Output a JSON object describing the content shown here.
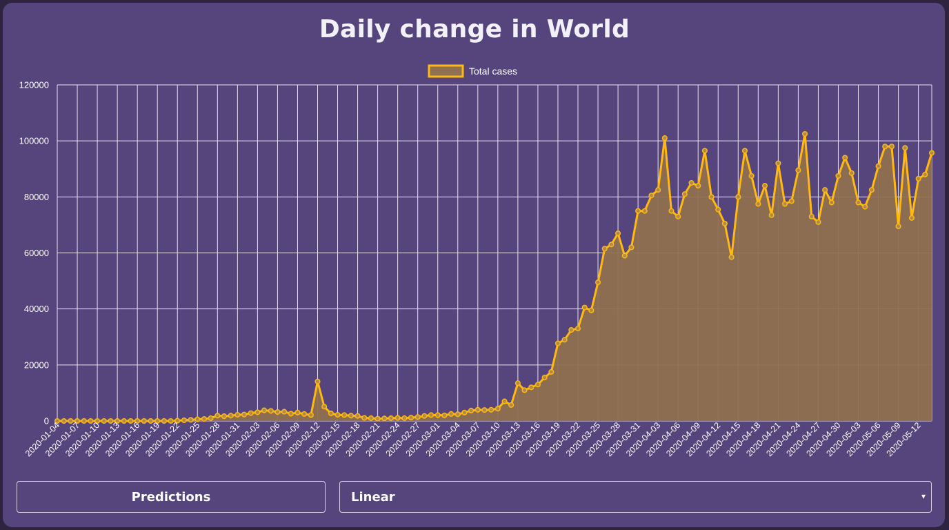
{
  "chart_data": {
    "type": "area",
    "title": "Daily change in World",
    "legend": {
      "position": "top",
      "entries": [
        "Total cases"
      ]
    },
    "series": [
      {
        "name": "Total cases",
        "color": "#ffb90f",
        "fill": "#8f7050",
        "values": [
          0,
          0,
          0,
          0,
          0,
          0,
          0,
          0,
          0,
          0,
          0,
          0,
          0,
          0,
          0,
          0,
          0,
          0,
          100,
          250,
          400,
          600,
          700,
          1000,
          1900,
          1700,
          1900,
          2200,
          2300,
          2800,
          3100,
          3800,
          3600,
          3200,
          3300,
          2600,
          3000,
          2500,
          2100,
          14100,
          5100,
          2700,
          2200,
          2100,
          1900,
          1800,
          1100,
          1000,
          800,
          900,
          1000,
          1100,
          1000,
          1200,
          1400,
          1800,
          2100,
          2100,
          2000,
          2500,
          2400,
          3000,
          3700,
          4000,
          3900,
          4000,
          4400,
          7000,
          5700,
          13500,
          11000,
          12000,
          13000,
          15500,
          17500,
          27700,
          29000,
          32500,
          33000,
          40500,
          39500,
          49500,
          61500,
          63000,
          67000,
          59000,
          62000,
          75000,
          75000,
          80500,
          82500,
          101000,
          75000,
          73000,
          81000,
          85000,
          84000,
          96500,
          80000,
          75500,
          70500,
          58500,
          80000,
          96500,
          87500,
          77500,
          84000,
          73500,
          92000,
          77500,
          78500,
          89500,
          102500,
          73000,
          71000,
          82500,
          78000,
          87500,
          94000,
          88500,
          78000,
          76500,
          82500,
          91000,
          98000,
          98000,
          69500,
          97500,
          72500,
          86500,
          88000,
          95700
        ]
      }
    ],
    "x_start": "2020-01-04",
    "x_end": "2020-05-15",
    "x_tick_labels": [
      "2020-01-04",
      "2020-01-07",
      "2020-01-10",
      "2020-01-13",
      "2020-01-16",
      "2020-01-19",
      "2020-01-22",
      "2020-01-25",
      "2020-01-28",
      "2020-01-31",
      "2020-02-03",
      "2020-02-06",
      "2020-02-09",
      "2020-02-12",
      "2020-02-15",
      "2020-02-18",
      "2020-02-21",
      "2020-02-24",
      "2020-02-27",
      "2020-03-01",
      "2020-03-04",
      "2020-03-07",
      "2020-03-10",
      "2020-03-13",
      "2020-03-16",
      "2020-03-19",
      "2020-03-22",
      "2020-03-25",
      "2020-03-28",
      "2020-03-31",
      "2020-04-03",
      "2020-04-06",
      "2020-04-09",
      "2020-04-12",
      "2020-04-15",
      "2020-04-18",
      "2020-04-21",
      "2020-04-24",
      "2020-04-27",
      "2020-04-30",
      "2020-05-03",
      "2020-05-06",
      "2020-05-09",
      "2020-05-12"
    ],
    "y_tick_labels": [
      "0",
      "20000",
      "40000",
      "60000",
      "80000",
      "100000",
      "120000"
    ],
    "ylim": [
      0,
      120000
    ],
    "grid": true
  },
  "controls": {
    "predictions_label": "Predictions",
    "model_selected": "Linear",
    "caret": "▾"
  }
}
